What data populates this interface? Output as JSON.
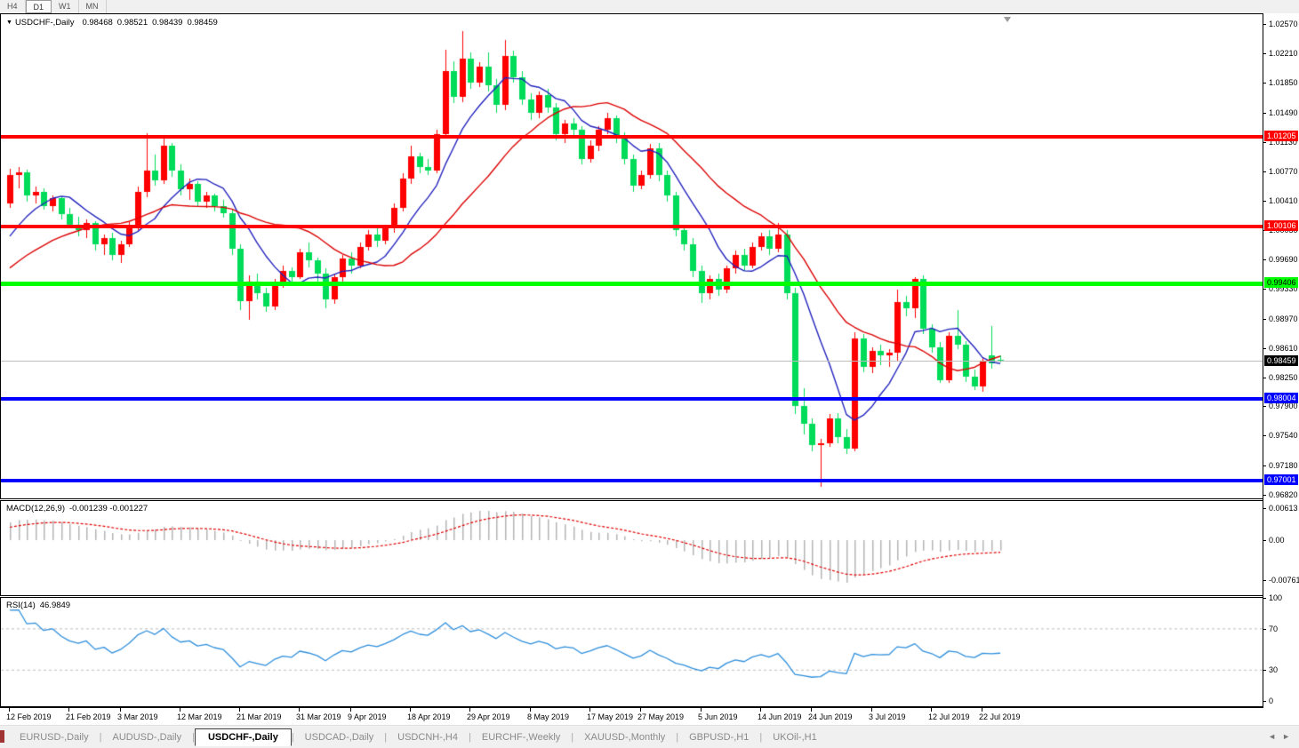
{
  "toolbar": {
    "buttons": [
      {
        "label": "H4",
        "active": false
      },
      {
        "label": "D1",
        "active": true
      },
      {
        "label": "W1",
        "active": false
      },
      {
        "label": "MN",
        "active": false
      }
    ]
  },
  "icons": {
    "dropdown": "▼",
    "tab_prev": "◄",
    "tab_next": "►"
  },
  "chart": {
    "title": "USDCHF-,Daily",
    "quote": {
      "open": "0.98468",
      "high": "0.98521",
      "low": "0.98439",
      "close": "0.98459"
    }
  },
  "macd": {
    "label": "MACD(12,26,9)",
    "values": "-0.001239 -0.001227",
    "axis_labels": [
      "0.00613",
      "0.00",
      "-0.007612"
    ],
    "axis_values": [
      0.00613,
      0,
      -0.007612
    ]
  },
  "rsi": {
    "label": "RSI(14)",
    "value": "46.9849",
    "axis_labels": [
      "100",
      "70",
      "30",
      "0"
    ],
    "axis_values": [
      100,
      70,
      30,
      0
    ],
    "levels": [
      70,
      30
    ]
  },
  "price_axis": {
    "labels": [
      "1.02570",
      "1.02210",
      "1.01850",
      "1.01490",
      "1.01130",
      "1.00770",
      "1.00410",
      "1.00050",
      "0.99690",
      "0.99330",
      "0.98970",
      "0.98610",
      "0.98250",
      "0.97900",
      "0.97540",
      "0.97180",
      "0.96820"
    ]
  },
  "levels": [
    {
      "price": 1.01205,
      "label": "1.01205",
      "color": "#FF0000",
      "text": "#FFFFFF",
      "thickness": 4,
      "kind": "resistance"
    },
    {
      "price": 1.00106,
      "label": "1.00106",
      "color": "#FF0000",
      "text": "#FFFFFF",
      "thickness": 4,
      "kind": "resistance"
    },
    {
      "price": 0.99406,
      "label": "0.99406",
      "color": "#00FF00",
      "text": "#000000",
      "thickness": 5,
      "kind": "pivot"
    },
    {
      "price": 0.98459,
      "label": "0.98459",
      "color": "#BEBEBE",
      "text": "#FFFFFF",
      "thickness": 1,
      "kind": "current-price",
      "badge": "#000000"
    },
    {
      "price": 0.98004,
      "label": "0.98004",
      "color": "#0000FF",
      "text": "#FFFFFF",
      "thickness": 4,
      "kind": "support"
    },
    {
      "price": 0.97001,
      "label": "0.97001",
      "color": "#0000FF",
      "text": "#FFFFFF",
      "thickness": 4,
      "kind": "support"
    }
  ],
  "tabs": {
    "items": [
      {
        "label": "EURUSD-,Daily",
        "active": false
      },
      {
        "label": "AUDUSD-,Daily",
        "active": false
      },
      {
        "label": "USDCHF-,Daily",
        "active": true
      },
      {
        "label": "USDCAD-,Daily",
        "active": false
      },
      {
        "label": "USDCNH-,H4",
        "active": false
      },
      {
        "label": "EURCHF-,Weekly",
        "active": false
      },
      {
        "label": "XAUUSD-,Monthly",
        "active": false
      },
      {
        "label": "GBPUSD-,H1",
        "active": false
      },
      {
        "label": "UKOil-,H1",
        "active": false
      }
    ]
  },
  "chart_data": {
    "type": "candlestick",
    "symbol": "USDCHF",
    "timeframe": "Daily",
    "ylim": [
      0.96773,
      1.0269
    ],
    "x_ticks": [
      {
        "label": "12 Feb 2019",
        "i": 0
      },
      {
        "label": "21 Feb 2019",
        "i": 7
      },
      {
        "label": "3 Mar 2019",
        "i": 13
      },
      {
        "label": "12 Mar 2019",
        "i": 20
      },
      {
        "label": "21 Mar 2019",
        "i": 27
      },
      {
        "label": "31 Mar 2019",
        "i": 34
      },
      {
        "label": "9 Apr 2019",
        "i": 40
      },
      {
        "label": "18 Apr 2019",
        "i": 47
      },
      {
        "label": "29 Apr 2019",
        "i": 54
      },
      {
        "label": "8 May 2019",
        "i": 61
      },
      {
        "label": "17 May 2019",
        "i": 68
      },
      {
        "label": "27 May 2019",
        "i": 74
      },
      {
        "label": "5 Jun 2019",
        "i": 81
      },
      {
        "label": "14 Jun 2019",
        "i": 88
      },
      {
        "label": "24 Jun 2019",
        "i": 94
      },
      {
        "label": "3 Jul 2019",
        "i": 101
      },
      {
        "label": "12 Jul 2019",
        "i": 108
      },
      {
        "label": "22 Jul 2019",
        "i": 114
      }
    ],
    "candles": [
      [
        1.0038,
        1.008,
        1.0032,
        1.0072
      ],
      [
        1.0072,
        1.0082,
        1.0056,
        1.0076
      ],
      [
        1.0076,
        1.0079,
        1.004,
        1.0048
      ],
      [
        1.0048,
        1.0058,
        1.0038,
        1.0052
      ],
      [
        1.0052,
        1.0056,
        1.003,
        1.0035
      ],
      [
        1.0035,
        1.0048,
        1.0028,
        1.0044
      ],
      [
        1.0044,
        1.0046,
        1.0018,
        1.0025
      ],
      [
        1.0025,
        1.0032,
        1.0008,
        1.0012
      ],
      [
        1.0012,
        1.0022,
        0.9998,
        1.0005
      ],
      [
        1.0005,
        1.0018,
        0.9995,
        1.0014
      ],
      [
        1.0014,
        1.0016,
        0.998,
        0.9988
      ],
      [
        0.9988,
        1.0,
        0.9975,
        0.9995
      ],
      [
        0.9995,
        1.0002,
        0.9968,
        0.9975
      ],
      [
        0.9975,
        0.9992,
        0.9965,
        0.9988
      ],
      [
        0.9988,
        1.0015,
        0.9985,
        1.001
      ],
      [
        1.001,
        1.0058,
        1.0005,
        1.0052
      ],
      [
        1.0052,
        1.0124,
        1.0045,
        1.0078
      ],
      [
        1.0078,
        1.0098,
        1.006,
        1.0066
      ],
      [
        1.0066,
        1.0121,
        1.0062,
        1.0108
      ],
      [
        1.0108,
        1.0112,
        1.007,
        1.0078
      ],
      [
        1.0078,
        1.0085,
        1.0048,
        1.0055
      ],
      [
        1.0055,
        1.0068,
        1.0042,
        1.0062
      ],
      [
        1.0062,
        1.0065,
        1.0035,
        1.004
      ],
      [
        1.004,
        1.0052,
        1.0032,
        1.0048
      ],
      [
        1.0048,
        1.005,
        1.0028,
        1.0034
      ],
      [
        1.0034,
        1.0042,
        1.002,
        1.0026
      ],
      [
        1.0026,
        1.003,
        0.9975,
        0.9982
      ],
      [
        0.9982,
        0.9988,
        0.9908,
        0.9918
      ],
      [
        0.9918,
        0.995,
        0.9896,
        0.9942
      ],
      [
        0.9942,
        0.9952,
        0.992,
        0.9928
      ],
      [
        0.9928,
        0.9935,
        0.9905,
        0.9912
      ],
      [
        0.9912,
        0.9945,
        0.9908,
        0.994
      ],
      [
        0.994,
        0.9962,
        0.9935,
        0.9955
      ],
      [
        0.9955,
        0.996,
        0.9938,
        0.9948
      ],
      [
        0.9948,
        0.9982,
        0.9945,
        0.9978
      ],
      [
        0.9978,
        0.999,
        0.996,
        0.9968
      ],
      [
        0.9968,
        0.9972,
        0.994,
        0.9952
      ],
      [
        0.9952,
        0.9958,
        0.991,
        0.992
      ],
      [
        0.992,
        0.9952,
        0.9915,
        0.9948
      ],
      [
        0.9948,
        0.9975,
        0.9942,
        0.997
      ],
      [
        0.997,
        0.9978,
        0.9952,
        0.9962
      ],
      [
        0.9962,
        0.999,
        0.9958,
        0.9985
      ],
      [
        0.9985,
        1.0005,
        0.998,
        1.0
      ],
      [
        1.0,
        1.0008,
        0.9985,
        0.9992
      ],
      [
        0.9992,
        1.0012,
        0.9988,
        1.0008
      ],
      [
        1.0008,
        1.0038,
        1.0002,
        1.0032
      ],
      [
        1.0032,
        1.0075,
        1.0028,
        1.0068
      ],
      [
        1.0068,
        1.0108,
        1.0062,
        1.0095
      ],
      [
        1.0095,
        1.01,
        1.0075,
        1.0082
      ],
      [
        1.0082,
        1.0092,
        1.0072,
        1.0078
      ],
      [
        1.0078,
        1.0128,
        1.0075,
        1.0122
      ],
      [
        1.0122,
        1.0226,
        1.0118,
        1.02
      ],
      [
        1.02,
        1.0212,
        1.016,
        1.0168
      ],
      [
        1.0168,
        1.0248,
        1.0162,
        1.0215
      ],
      [
        1.0215,
        1.0222,
        1.0178,
        1.0185
      ],
      [
        1.0185,
        1.021,
        1.018,
        1.0205
      ],
      [
        1.0205,
        1.0222,
        1.0175,
        1.0182
      ],
      [
        1.0182,
        1.019,
        1.0148,
        1.0158
      ],
      [
        1.0158,
        1.0237,
        1.0152,
        1.0218
      ],
      [
        1.0218,
        1.0225,
        1.0185,
        1.0192
      ],
      [
        1.0192,
        1.02,
        1.0158,
        1.0165
      ],
      [
        1.0165,
        1.0172,
        1.014,
        1.0148
      ],
      [
        1.0148,
        1.0175,
        1.0142,
        1.017
      ],
      [
        1.017,
        1.0178,
        1.0148,
        1.0155
      ],
      [
        1.0155,
        1.016,
        1.0115,
        1.0122
      ],
      [
        1.0122,
        1.014,
        1.0112,
        1.0135
      ],
      [
        1.0135,
        1.0142,
        1.012,
        1.0128
      ],
      [
        1.0128,
        1.0132,
        1.0085,
        1.0092
      ],
      [
        1.0092,
        1.0115,
        1.0088,
        1.0108
      ],
      [
        1.0108,
        1.0132,
        1.0102,
        1.0128
      ],
      [
        1.0128,
        1.0148,
        1.0122,
        1.0142
      ],
      [
        1.0142,
        1.0145,
        1.0112,
        1.0118
      ],
      [
        1.0118,
        1.0125,
        1.0085,
        1.0092
      ],
      [
        1.0092,
        1.0098,
        1.0052,
        1.006
      ],
      [
        1.006,
        1.0078,
        1.0055,
        1.0072
      ],
      [
        1.0072,
        1.011,
        1.0068,
        1.0105
      ],
      [
        1.0105,
        1.0112,
        1.0065,
        1.0072
      ],
      [
        1.0072,
        1.0078,
        1.004,
        1.0048
      ],
      [
        1.0048,
        1.0052,
        0.9998,
        1.0005
      ],
      [
        1.0005,
        1.0012,
        0.998,
        0.9988
      ],
      [
        0.9988,
        0.9995,
        0.9948,
        0.9955
      ],
      [
        0.9955,
        0.9962,
        0.9916,
        0.9928
      ],
      [
        0.9928,
        0.995,
        0.992,
        0.9945
      ],
      [
        0.9945,
        0.9952,
        0.9925,
        0.9932
      ],
      [
        0.9932,
        0.9962,
        0.9928,
        0.9958
      ],
      [
        0.9958,
        0.998,
        0.9952,
        0.9975
      ],
      [
        0.9975,
        0.9982,
        0.9955,
        0.9962
      ],
      [
        0.9962,
        0.999,
        0.9958,
        0.9985
      ],
      [
        0.9985,
        1.0002,
        0.998,
        0.9998
      ],
      [
        0.9998,
        1.0005,
        0.9975,
        0.9982
      ],
      [
        0.9982,
        1.0014,
        0.9978,
        1.0
      ],
      [
        1.0,
        1.0005,
        0.992,
        0.9928
      ],
      [
        0.9928,
        0.9935,
        0.978,
        0.979
      ],
      [
        0.979,
        0.9812,
        0.9755,
        0.9768
      ],
      [
        0.9768,
        0.9775,
        0.9735,
        0.9742
      ],
      [
        0.9742,
        0.975,
        0.9691,
        0.9745
      ],
      [
        0.9745,
        0.978,
        0.974,
        0.9775
      ],
      [
        0.9775,
        0.9782,
        0.9745,
        0.9752
      ],
      [
        0.9752,
        0.9762,
        0.9732,
        0.9738
      ],
      [
        0.9738,
        0.988,
        0.9735,
        0.9873
      ],
      [
        0.9873,
        0.9878,
        0.9832,
        0.9838
      ],
      [
        0.9838,
        0.9862,
        0.983,
        0.9857
      ],
      [
        0.9857,
        0.9865,
        0.984,
        0.9852
      ],
      [
        0.9852,
        0.986,
        0.9838,
        0.9855
      ],
      [
        0.9855,
        0.9932,
        0.9846,
        0.9917
      ],
      [
        0.9917,
        0.9925,
        0.99,
        0.991
      ],
      [
        0.991,
        0.9948,
        0.9898,
        0.9945
      ],
      [
        0.9945,
        0.995,
        0.9878,
        0.9885
      ],
      [
        0.9885,
        0.989,
        0.9855,
        0.9862
      ],
      [
        0.9862,
        0.9868,
        0.9818,
        0.9822
      ],
      [
        0.9822,
        0.988,
        0.9818,
        0.9876
      ],
      [
        0.9876,
        0.9907,
        0.986,
        0.9865
      ],
      [
        0.9865,
        0.987,
        0.982,
        0.9826
      ],
      [
        0.9826,
        0.9835,
        0.981,
        0.9814
      ],
      [
        0.9814,
        0.985,
        0.9808,
        0.9846
      ],
      [
        0.9852,
        0.9888,
        0.9836,
        0.9842
      ],
      [
        0.98468,
        0.98521,
        0.98439,
        0.98459
      ]
    ],
    "indicator_seed_closes": [
      0.9878,
      0.9884,
      0.9876,
      0.989,
      0.9898,
      0.9892,
      0.9905,
      0.9912,
      0.9906,
      0.9918,
      0.9926,
      0.992,
      0.9932,
      0.994,
      0.9934,
      0.9946,
      0.9955,
      0.9948,
      0.996,
      0.997,
      0.9963,
      0.9975,
      0.9985,
      0.9992,
      1.0005,
      1.002
    ],
    "overlays": {
      "ma_fast": {
        "type": "sma",
        "period": 8,
        "color": "#2323BE"
      },
      "ma_slow": {
        "type": "sma",
        "period": 20,
        "color": "#DC0000"
      }
    },
    "colors": {
      "bull": "#FF0000",
      "bear": "#00DC5A"
    },
    "macd": {
      "params": [
        12,
        26,
        9
      ],
      "ylim": [
        -0.01056,
        0.00749
      ],
      "hist_color": "#B4B4B4",
      "signal_color": "#E00000"
    },
    "rsi": {
      "period": 14,
      "ylim": [
        -5,
        100
      ],
      "color": "#2F8FDC",
      "level_color": "#BBBBBB"
    }
  }
}
